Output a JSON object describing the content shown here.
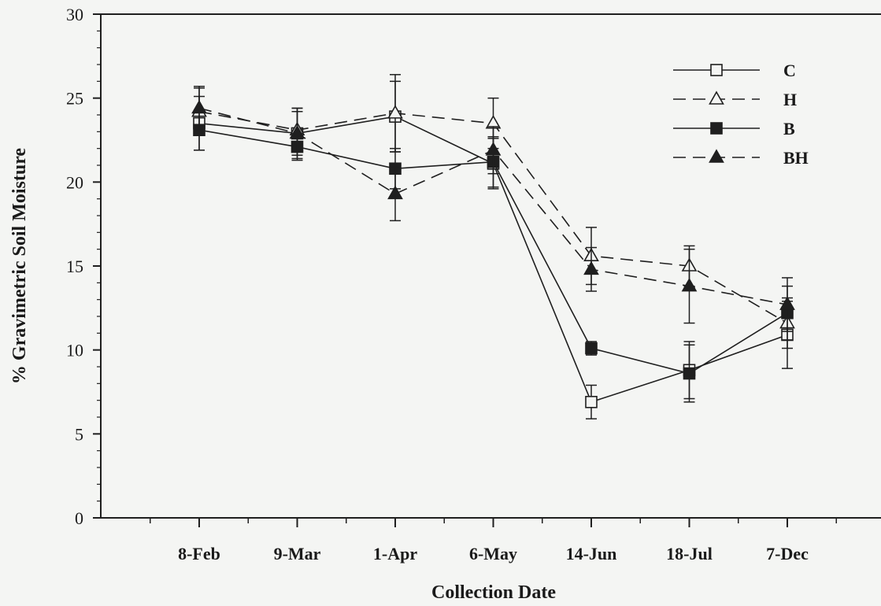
{
  "chart_data": {
    "type": "line",
    "xlabel": "Collection Date",
    "ylabel": "% Gravimetric Soil Moisture",
    "ylim": [
      0,
      30
    ],
    "yticks": [
      0,
      5,
      10,
      15,
      20,
      25,
      30
    ],
    "categories": [
      "8-Feb",
      "9-Mar",
      "1-Apr",
      "6-May",
      "14-Jun",
      "18-Jul",
      "7-Dec"
    ],
    "grid": false,
    "legend_position": "top-right",
    "error_bars": true,
    "series": [
      {
        "name": "C",
        "line": "solid",
        "marker": "square-open",
        "values": [
          23.5,
          22.9,
          23.9,
          21.1,
          6.9,
          8.8,
          10.9
        ],
        "errors": [
          1.6,
          1.3,
          2.1,
          1.5,
          1.0,
          1.7,
          2.0
        ]
      },
      {
        "name": "H",
        "line": "dashed",
        "marker": "triangle-open",
        "values": [
          24.2,
          23.1,
          24.1,
          23.5,
          15.6,
          15.0,
          11.6
        ],
        "errors": [
          1.4,
          1.3,
          2.3,
          1.5,
          1.7,
          1.2,
          1.5
        ]
      },
      {
        "name": "B",
        "line": "solid",
        "marker": "square-filled",
        "values": [
          23.1,
          22.1,
          20.8,
          21.2,
          10.1,
          8.6,
          12.2
        ],
        "errors": [
          1.2,
          0.8,
          1.2,
          1.5,
          0.4,
          1.7,
          1.6
        ]
      },
      {
        "name": "BH",
        "line": "dashed",
        "marker": "triangle-filled",
        "values": [
          24.4,
          22.9,
          19.3,
          21.9,
          14.8,
          13.8,
          12.7
        ],
        "errors": [
          1.3,
          1.5,
          1.6,
          1.4,
          1.3,
          2.2,
          1.6
        ]
      }
    ]
  }
}
